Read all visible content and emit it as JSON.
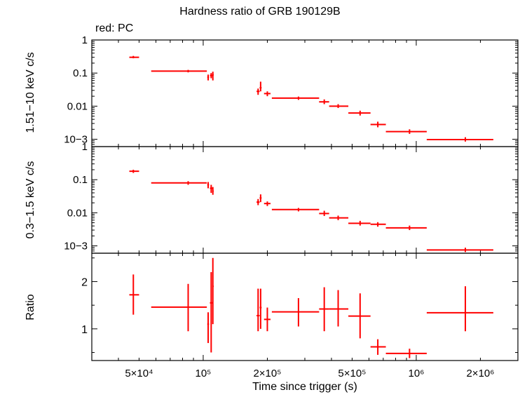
{
  "title": "Hardness ratio of GRB 190129B",
  "subtitle": "red: PC",
  "chart_data": [
    {
      "type": "scatter",
      "panel": "top",
      "ylabel": "1.51−10 keV c/s",
      "yscale": "log",
      "ylim": [
        0.0006,
        1
      ],
      "xscale": "log",
      "xlim": [
        30000,
        3000000
      ],
      "ytick_labels": [
        "1",
        "0.1",
        "0.01",
        "10−3"
      ],
      "color": "#ff0000",
      "points": [
        {
          "x": 47000,
          "xlo": 45000,
          "xhi": 50000,
          "y": 0.3,
          "ylo": 0.28,
          "yhi": 0.33
        },
        {
          "x": 85000,
          "xlo": 57000,
          "xhi": 104000,
          "y": 0.115,
          "ylo": 0.105,
          "yhi": 0.125
        },
        {
          "x": 105500,
          "xlo": 104500,
          "xhi": 106500,
          "y": 0.075,
          "ylo": 0.06,
          "yhi": 0.09
        },
        {
          "x": 109000,
          "xlo": 107500,
          "xhi": 110500,
          "y": 0.085,
          "ylo": 0.07,
          "yhi": 0.1
        },
        {
          "x": 111000,
          "xlo": 110500,
          "xhi": 112000,
          "y": 0.088,
          "ylo": 0.06,
          "yhi": 0.11
        },
        {
          "x": 181000,
          "xlo": 178000,
          "xhi": 184000,
          "y": 0.028,
          "ylo": 0.022,
          "yhi": 0.034
        },
        {
          "x": 186000,
          "xlo": 184000,
          "xhi": 188000,
          "y": 0.036,
          "ylo": 0.028,
          "yhi": 0.055
        },
        {
          "x": 200000,
          "xlo": 193000,
          "xhi": 207000,
          "y": 0.024,
          "ylo": 0.02,
          "yhi": 0.028
        },
        {
          "x": 280000,
          "xlo": 210000,
          "xhi": 350000,
          "y": 0.0175,
          "ylo": 0.0155,
          "yhi": 0.0195
        },
        {
          "x": 370000,
          "xlo": 350000,
          "xhi": 390000,
          "y": 0.0135,
          "ylo": 0.0115,
          "yhi": 0.016
        },
        {
          "x": 430000,
          "xlo": 390000,
          "xhi": 480000,
          "y": 0.01,
          "ylo": 0.0088,
          "yhi": 0.0115
        },
        {
          "x": 545000,
          "xlo": 480000,
          "xhi": 610000,
          "y": 0.0062,
          "ylo": 0.0052,
          "yhi": 0.0073
        },
        {
          "x": 660000,
          "xlo": 610000,
          "xhi": 720000,
          "y": 0.0028,
          "ylo": 0.0023,
          "yhi": 0.0034
        },
        {
          "x": 930000,
          "xlo": 720000,
          "xhi": 1120000,
          "y": 0.0017,
          "ylo": 0.00145,
          "yhi": 0.002
        },
        {
          "x": 1700000,
          "xlo": 1120000,
          "xhi": 2300000,
          "y": 0.00098,
          "ylo": 0.00085,
          "yhi": 0.00115
        }
      ]
    },
    {
      "type": "scatter",
      "panel": "middle",
      "ylabel": "0.3−1.5 keV c/s",
      "yscale": "log",
      "ylim": [
        0.0006,
        1
      ],
      "xscale": "log",
      "xlim": [
        30000,
        3000000
      ],
      "ytick_labels": [
        "1",
        "0.1",
        "0.01",
        "10−3"
      ],
      "color": "#ff0000",
      "points": [
        {
          "x": 47000,
          "xlo": 45000,
          "xhi": 50000,
          "y": 0.18,
          "ylo": 0.16,
          "yhi": 0.2
        },
        {
          "x": 85000,
          "xlo": 57000,
          "xhi": 104000,
          "y": 0.08,
          "ylo": 0.07,
          "yhi": 0.09
        },
        {
          "x": 105500,
          "xlo": 104500,
          "xhi": 106500,
          "y": 0.07,
          "ylo": 0.055,
          "yhi": 0.085
        },
        {
          "x": 109000,
          "xlo": 107500,
          "xhi": 110500,
          "y": 0.055,
          "ylo": 0.04,
          "yhi": 0.07
        },
        {
          "x": 111000,
          "xlo": 110500,
          "xhi": 112000,
          "y": 0.045,
          "ylo": 0.035,
          "yhi": 0.06
        },
        {
          "x": 181000,
          "xlo": 178000,
          "xhi": 184000,
          "y": 0.021,
          "ylo": 0.017,
          "yhi": 0.026
        },
        {
          "x": 186000,
          "xlo": 184000,
          "xhi": 188000,
          "y": 0.028,
          "ylo": 0.021,
          "yhi": 0.036
        },
        {
          "x": 200000,
          "xlo": 193000,
          "xhi": 207000,
          "y": 0.019,
          "ylo": 0.016,
          "yhi": 0.022
        },
        {
          "x": 280000,
          "xlo": 210000,
          "xhi": 350000,
          "y": 0.0125,
          "ylo": 0.011,
          "yhi": 0.014
        },
        {
          "x": 370000,
          "xlo": 350000,
          "xhi": 390000,
          "y": 0.0095,
          "ylo": 0.008,
          "yhi": 0.0115
        },
        {
          "x": 430000,
          "xlo": 390000,
          "xhi": 480000,
          "y": 0.007,
          "ylo": 0.006,
          "yhi": 0.0082
        },
        {
          "x": 545000,
          "xlo": 480000,
          "xhi": 610000,
          "y": 0.0048,
          "ylo": 0.0041,
          "yhi": 0.0057
        },
        {
          "x": 660000,
          "xlo": 610000,
          "xhi": 720000,
          "y": 0.0045,
          "ylo": 0.0038,
          "yhi": 0.0052
        },
        {
          "x": 930000,
          "xlo": 720000,
          "xhi": 1120000,
          "y": 0.0035,
          "ylo": 0.003,
          "yhi": 0.0041
        },
        {
          "x": 1700000,
          "xlo": 1120000,
          "xhi": 2300000,
          "y": 0.00075,
          "ylo": 0.00065,
          "yhi": 0.00088
        }
      ]
    },
    {
      "type": "scatter",
      "panel": "bottom",
      "ylabel": "Ratio",
      "xlabel": "Time since trigger (s)",
      "yscale": "linear",
      "ylim": [
        0.33,
        2.6
      ],
      "xscale": "log",
      "xlim": [
        30000,
        3000000
      ],
      "ytick_labels": [
        "1",
        "2"
      ],
      "xtick_labels": [
        "5×10⁴",
        "10⁵",
        "2×10⁵",
        "5×10⁵",
        "10⁶",
        "2×10⁶"
      ],
      "color": "#ff0000",
      "points": [
        {
          "x": 47000,
          "xlo": 45000,
          "xhi": 50000,
          "y": 1.72,
          "ylo": 1.3,
          "yhi": 2.15
        },
        {
          "x": 85000,
          "xlo": 57000,
          "xhi": 104000,
          "y": 1.46,
          "ylo": 0.95,
          "yhi": 1.95
        },
        {
          "x": 105500,
          "xlo": 104500,
          "xhi": 106500,
          "y": 1.1,
          "ylo": 0.7,
          "yhi": 1.35
        },
        {
          "x": 109000,
          "xlo": 107500,
          "xhi": 110500,
          "y": 1.55,
          "ylo": 0.5,
          "yhi": 2.2
        },
        {
          "x": 111000,
          "xlo": 110500,
          "xhi": 112000,
          "y": 1.9,
          "ylo": 1.1,
          "yhi": 2.5
        },
        {
          "x": 181000,
          "xlo": 178000,
          "xhi": 184000,
          "y": 1.28,
          "ylo": 0.95,
          "yhi": 1.85
        },
        {
          "x": 186000,
          "xlo": 184000,
          "xhi": 188000,
          "y": 1.45,
          "ylo": 1.0,
          "yhi": 1.85
        },
        {
          "x": 200000,
          "xlo": 193000,
          "xhi": 207000,
          "y": 1.2,
          "ylo": 0.95,
          "yhi": 1.45
        },
        {
          "x": 280000,
          "xlo": 210000,
          "xhi": 350000,
          "y": 1.36,
          "ylo": 1.05,
          "yhi": 1.65
        },
        {
          "x": 370000,
          "xlo": 350000,
          "xhi": 390000,
          "y": 1.42,
          "ylo": 0.95,
          "yhi": 1.88
        },
        {
          "x": 430000,
          "xlo": 390000,
          "xhi": 480000,
          "y": 1.42,
          "ylo": 1.05,
          "yhi": 1.82
        },
        {
          "x": 545000,
          "xlo": 480000,
          "xhi": 610000,
          "y": 1.27,
          "ylo": 0.8,
          "yhi": 1.75
        },
        {
          "x": 660000,
          "xlo": 610000,
          "xhi": 720000,
          "y": 0.62,
          "ylo": 0.45,
          "yhi": 0.78
        },
        {
          "x": 930000,
          "xlo": 720000,
          "xhi": 1120000,
          "y": 0.48,
          "ylo": 0.38,
          "yhi": 0.58
        },
        {
          "x": 1700000,
          "xlo": 1120000,
          "xhi": 2300000,
          "y": 1.34,
          "ylo": 0.95,
          "yhi": 1.9
        }
      ]
    }
  ]
}
